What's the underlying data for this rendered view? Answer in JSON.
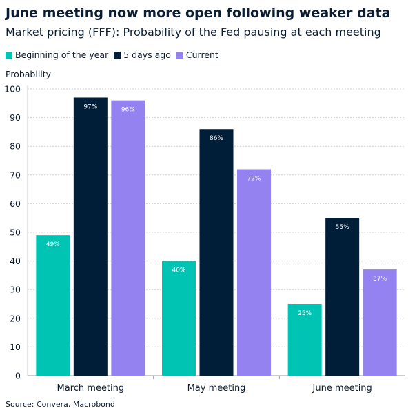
{
  "chart_data": {
    "type": "bar",
    "title": "June meeting now more open following weaker data",
    "subtitle": "Market pricing (FFF): Probability of the Fed pausing at each meeting",
    "ylabel": "Probability",
    "xlabel": "",
    "ylim": [
      0,
      100
    ],
    "yticks": [
      0,
      10,
      20,
      30,
      40,
      50,
      60,
      70,
      80,
      90,
      100
    ],
    "grid": true,
    "legend_placement": "top-left",
    "categories": [
      "March meeting",
      "May meeting",
      "June meeting"
    ],
    "series": [
      {
        "name": "Beginning of the year",
        "color": "#00c4b3",
        "values": [
          49,
          40,
          25
        ],
        "labels": [
          "49%",
          "40%",
          "25%"
        ]
      },
      {
        "name": "5 days ago",
        "color": "#001e38",
        "values": [
          97,
          86,
          55
        ],
        "labels": [
          "97%",
          "86%",
          "55%"
        ]
      },
      {
        "name": "Current",
        "color": "#9382f0",
        "values": [
          96,
          72,
          37
        ],
        "labels": [
          "96%",
          "72%",
          "37%"
        ]
      }
    ],
    "source": "Source: Convera, Macrobond"
  }
}
